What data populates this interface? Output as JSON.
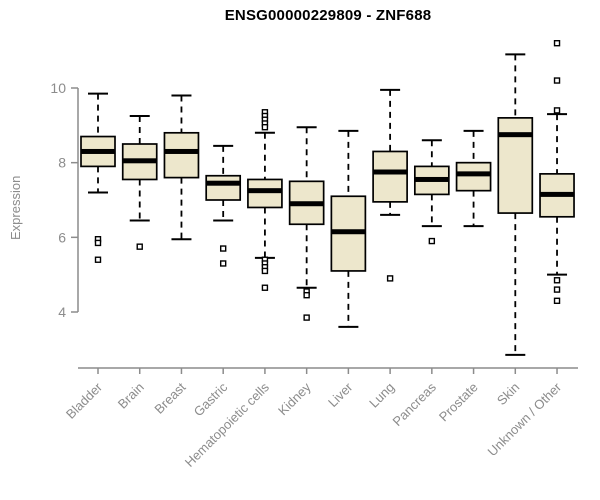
{
  "chart_data": {
    "type": "boxplot",
    "title": "ENSG00000229809 - ZNF688",
    "ylabel": "Expression",
    "yticks": [
      4,
      6,
      8,
      10
    ],
    "ylim": [
      2.8,
      11.3
    ],
    "grid": false,
    "categories": [
      "Bladder",
      "Brain",
      "Breast",
      "Gastric",
      "Hematopoietic cells",
      "Kidney",
      "Liver",
      "Lung",
      "Pancreas",
      "Prostate",
      "Skin",
      "Unknown / Other"
    ],
    "series": [
      {
        "name": "Bladder",
        "low": 7.2,
        "q1": 7.9,
        "median": 8.3,
        "q3": 8.7,
        "high": 9.85,
        "outliers": [
          5.95,
          5.85,
          5.4
        ]
      },
      {
        "name": "Brain",
        "low": 6.45,
        "q1": 7.55,
        "median": 8.05,
        "q3": 8.5,
        "high": 9.25,
        "outliers": [
          5.75
        ]
      },
      {
        "name": "Breast",
        "low": 5.95,
        "q1": 7.6,
        "median": 8.3,
        "q3": 8.8,
        "high": 9.8,
        "outliers": []
      },
      {
        "name": "Gastric",
        "low": 6.45,
        "q1": 7.0,
        "median": 7.45,
        "q3": 7.65,
        "high": 8.45,
        "outliers": [
          5.7,
          5.3
        ]
      },
      {
        "name": "Hematopoietic cells",
        "low": 5.45,
        "q1": 6.8,
        "median": 7.25,
        "q3": 7.55,
        "high": 8.8,
        "outliers": [
          9.35,
          9.25,
          9.15,
          9.05,
          8.95,
          5.4,
          5.3,
          5.2,
          5.1,
          4.65
        ]
      },
      {
        "name": "Kidney",
        "low": 4.65,
        "q1": 6.35,
        "median": 6.9,
        "q3": 7.5,
        "high": 8.95,
        "outliers": [
          4.55,
          4.45,
          3.85
        ]
      },
      {
        "name": "Liver",
        "low": 3.6,
        "q1": 5.1,
        "median": 6.15,
        "q3": 7.1,
        "high": 8.85,
        "outliers": []
      },
      {
        "name": "Lung",
        "low": 6.6,
        "q1": 6.95,
        "median": 7.75,
        "q3": 8.3,
        "high": 9.95,
        "outliers": [
          4.9
        ]
      },
      {
        "name": "Pancreas",
        "low": 6.3,
        "q1": 7.15,
        "median": 7.55,
        "q3": 7.9,
        "high": 8.6,
        "outliers": [
          5.9
        ]
      },
      {
        "name": "Prostate",
        "low": 6.3,
        "q1": 7.25,
        "median": 7.7,
        "q3": 8.0,
        "high": 8.85,
        "outliers": []
      },
      {
        "name": "Skin",
        "low": 2.85,
        "q1": 6.65,
        "median": 8.75,
        "q3": 9.2,
        "high": 10.9,
        "outliers": []
      },
      {
        "name": "Unknown / Other",
        "low": 5.0,
        "q1": 6.55,
        "median": 7.15,
        "q3": 7.7,
        "high": 9.3,
        "outliers": [
          11.2,
          10.2,
          9.4,
          4.85,
          4.6,
          4.3
        ]
      }
    ],
    "colors": {
      "box_fill": "#EDE7CC",
      "box_stroke": "#000000",
      "median": "#000000",
      "whisker": "#000000",
      "axis": "#8C8C8C",
      "tick_label": "#8C8C8C",
      "title": "#000000",
      "background": "#FFFFFF"
    }
  }
}
